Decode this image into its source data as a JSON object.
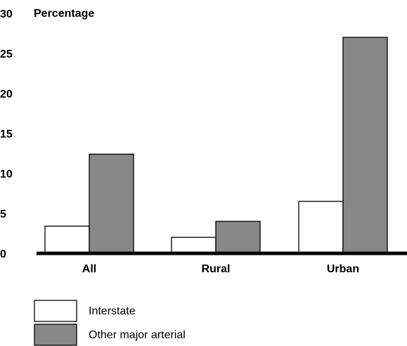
{
  "chart_data": {
    "type": "bar",
    "y_unit_label": "Percentage",
    "categories": [
      "All",
      "Rural",
      "Urban"
    ],
    "series": [
      {
        "name": "Interstate",
        "values": [
          3.4,
          2.0,
          6.5
        ],
        "color": "#ffffff"
      },
      {
        "name": "Other major arterial",
        "values": [
          12.4,
          4.0,
          27.0
        ],
        "color": "#888888"
      }
    ],
    "ylim": [
      0,
      30
    ],
    "yticks": [
      0,
      5,
      10,
      15,
      20,
      25,
      30
    ],
    "grid": false,
    "legend_position": "bottom-left"
  }
}
